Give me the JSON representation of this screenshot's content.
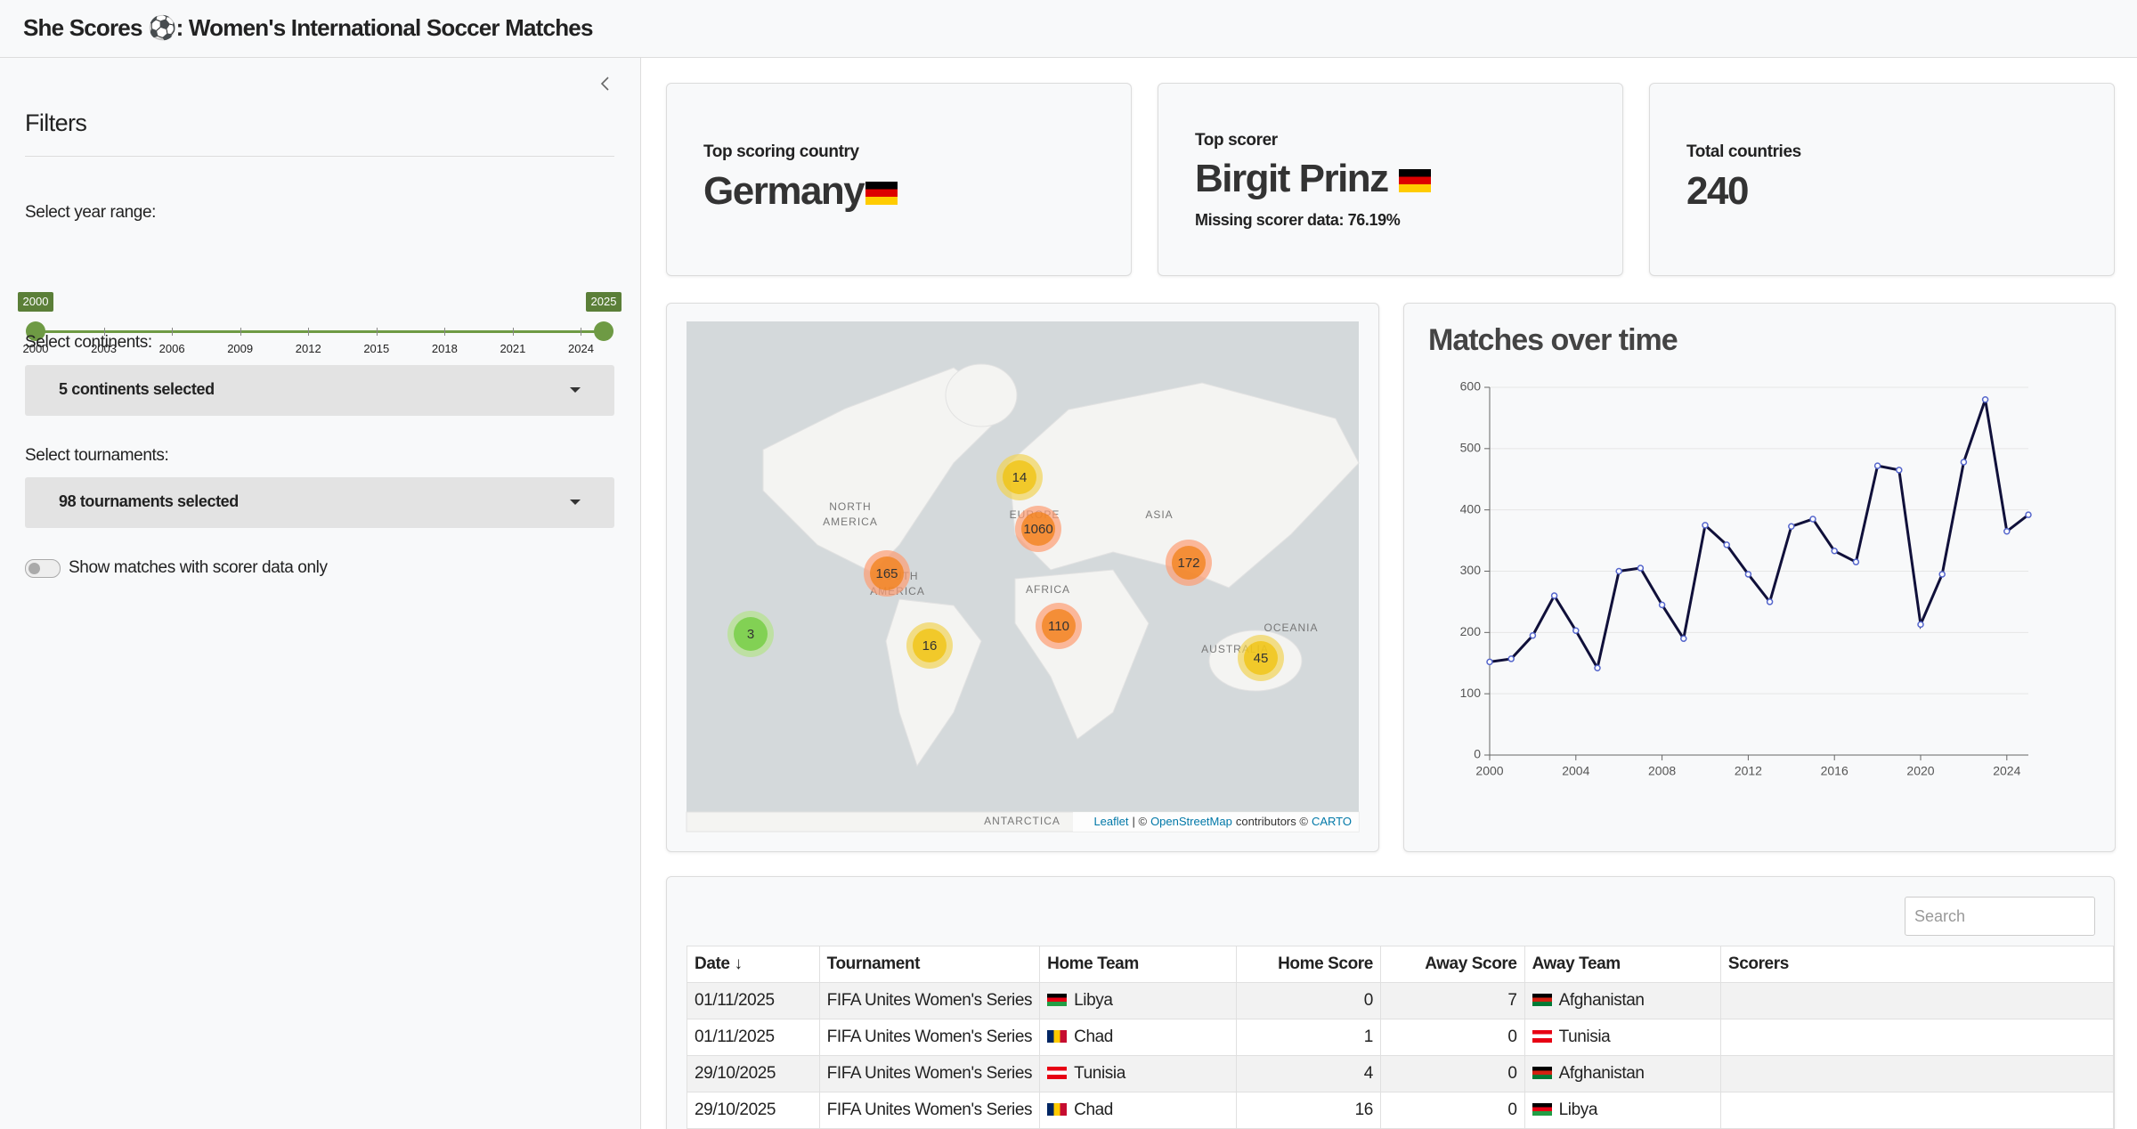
{
  "header": {
    "title": "She Scores ⚽: Women's International Soccer Matches"
  },
  "sidebar": {
    "title": "Filters",
    "year_range": {
      "label": "Select year range:",
      "selected": [
        2000,
        2025
      ],
      "range": [
        2000,
        2025
      ],
      "ticks": [
        2000,
        2003,
        2006,
        2009,
        2012,
        2015,
        2018,
        2021,
        2024
      ]
    },
    "continents": {
      "label": "Select continents:",
      "value": "5 continents selected"
    },
    "tournaments": {
      "label": "Select tournaments:",
      "value": "98 tournaments selected"
    },
    "toggle": {
      "label": "Show matches with scorer data only",
      "on": false
    }
  },
  "cards": [
    {
      "label": "Top scoring country",
      "value": "Germany"
    },
    {
      "label": "Top scorer",
      "value": "Birgit Prinz",
      "note": "Missing scorer data: 76.19%"
    },
    {
      "label": "Total countries",
      "value": 240
    }
  ],
  "map": {
    "zoom": [
      "+",
      "−"
    ],
    "clusters": [
      14,
      1060,
      165,
      172,
      110,
      3,
      16,
      45
    ],
    "labels": [
      "NORTH",
      "AMERICA",
      "SOUTH",
      "AMERICA",
      "EUROPE",
      "ASIA",
      "AFRICA",
      "OCEANIA",
      "AUSTRALIA",
      "ANTARCTICA"
    ],
    "attribution": [
      "Leaflet",
      "| ©",
      "OpenStreetMap",
      "contributors ©",
      "CARTO"
    ]
  },
  "chart_data": {
    "type": "line",
    "title": "Matches over time",
    "x": [
      2000,
      2001,
      2002,
      2003,
      2004,
      2005,
      2006,
      2007,
      2008,
      2009,
      2010,
      2011,
      2012,
      2013,
      2014,
      2015,
      2016,
      2017,
      2018,
      2019,
      2020,
      2021,
      2022,
      2023,
      2024,
      2025
    ],
    "values": [
      152,
      157,
      195,
      260,
      203,
      142,
      300,
      305,
      245,
      190,
      375,
      343,
      295,
      250,
      373,
      385,
      333,
      315,
      472,
      465,
      213,
      295,
      478,
      580,
      365,
      392
    ],
    "color": "#10103a",
    "xlim": [
      2000,
      2025
    ],
    "xticks": [
      2000,
      2004,
      2008,
      2012,
      2016,
      2020,
      2024
    ],
    "ylim": [
      0,
      600
    ],
    "yticks": [
      0,
      100,
      200,
      300,
      400,
      500,
      600
    ],
    "grid": true
  },
  "table": {
    "search_placeholder": "Search",
    "columns": [
      "Date ↓",
      "Tournament",
      "Home Team",
      "Home Score",
      "Away Score",
      "Away Team",
      "Scorers"
    ],
    "rows": [
      [
        "01/11/2025",
        "FIFA Unites Women's Series",
        "Libya",
        0,
        7,
        "Afghanistan"
      ],
      [
        "01/11/2025",
        "FIFA Unites Women's Series",
        "Chad",
        1,
        0,
        "Tunisia"
      ],
      [
        "29/10/2025",
        "FIFA Unites Women's Series",
        "Tunisia",
        4,
        0,
        "Afghanistan"
      ],
      [
        "29/10/2025",
        "FIFA Unites Women's Series",
        "Chad",
        16,
        0,
        "Libya"
      ]
    ]
  }
}
